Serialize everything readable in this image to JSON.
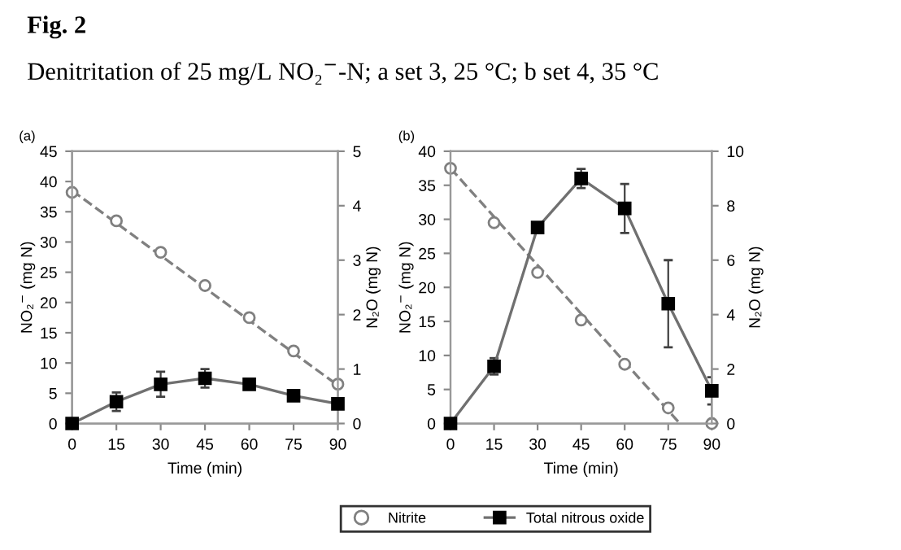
{
  "chart_data": [
    {
      "type": "line",
      "title": "Fig. 2",
      "subtitle": "Denitritation of 25 mg/L NO₂$^{−}$-N; a set 3, 25 °C; b set 4, 35 °C",
      "annotations": [
        "(a)"
      ],
      "xlabel": "Time (min)",
      "ylabel": "NO₂$^{−}$ (mg N)",
      "y2label": "N₂O (mg N)",
      "x": [
        0,
        15,
        30,
        45,
        60,
        75,
        90
      ],
      "xlim": [
        0,
        90
      ],
      "xticks": [
        0,
        15,
        30,
        45,
        60,
        75,
        90
      ],
      "ylim": [
        0,
        45
      ],
      "yticks": [
        0,
        5,
        10,
        15,
        20,
        25,
        30,
        35,
        40,
        45
      ],
      "y2lim": [
        0,
        5
      ],
      "y2ticks": [
        0,
        1,
        2,
        3,
        4,
        5
      ],
      "grid": false,
      "legend": "bottom",
      "series": [
        {
          "name": "Nitrite",
          "type": "scatter",
          "marker": "circle",
          "color": "#808080",
          "values": [
            38.2,
            33.5,
            28.3,
            22.8,
            17.5,
            12.0,
            6.5
          ]
        },
        {
          "type": "line",
          "line_style": "dashed",
          "marker": "none",
          "color": "#808080",
          "x": [
            0,
            90
          ],
          "values": [
            38.5,
            6.3
          ]
        },
        {
          "name": "Total nitrous oxide",
          "axis": "y2",
          "marker": "square",
          "line_style": "solid",
          "color": "#000000",
          "values": [
            0,
            0.4,
            0.72,
            0.83,
            0.72,
            0.51,
            0.36
          ],
          "errors": [
            null,
            0.17,
            0.23,
            0.17,
            0.07,
            null,
            0.08
          ]
        }
      ]
    },
    {
      "type": "line",
      "annotations": [
        "(b)"
      ],
      "xlabel": "Time (min)",
      "ylabel": "NO₂$^{−}$ (mg N)",
      "y2label": "N₂O (mg N)",
      "x": [
        0,
        15,
        30,
        45,
        60,
        75,
        90
      ],
      "xlim": [
        0,
        90
      ],
      "xticks": [
        0,
        15,
        30,
        45,
        60,
        75,
        90
      ],
      "ylim": [
        0,
        40
      ],
      "yticks": [
        0,
        5,
        10,
        15,
        20,
        25,
        30,
        35,
        40
      ],
      "y2lim": [
        0,
        10
      ],
      "y2ticks": [
        0,
        2,
        4,
        6,
        8,
        10
      ],
      "grid": false,
      "legend": "bottom",
      "series": [
        {
          "name": "Nitrite",
          "type": "scatter",
          "marker": "circle",
          "color": "#808080",
          "values": [
            37.5,
            29.5,
            22.2,
            15.2,
            8.7,
            2.3,
            0
          ]
        },
        {
          "type": "line",
          "line_style": "dashed",
          "marker": "none",
          "color": "#808080",
          "x": [
            0,
            79
          ],
          "values": [
            37.5,
            0
          ]
        },
        {
          "name": "Total nitrous oxide",
          "axis": "y2",
          "marker": "square",
          "line_style": "solid",
          "color": "#000000",
          "values": [
            0,
            2.1,
            7.2,
            9.0,
            7.9,
            4.4,
            1.2
          ],
          "errors": [
            null,
            0.3,
            0.15,
            0.35,
            0.9,
            1.6,
            0.5
          ]
        }
      ]
    }
  ]
}
